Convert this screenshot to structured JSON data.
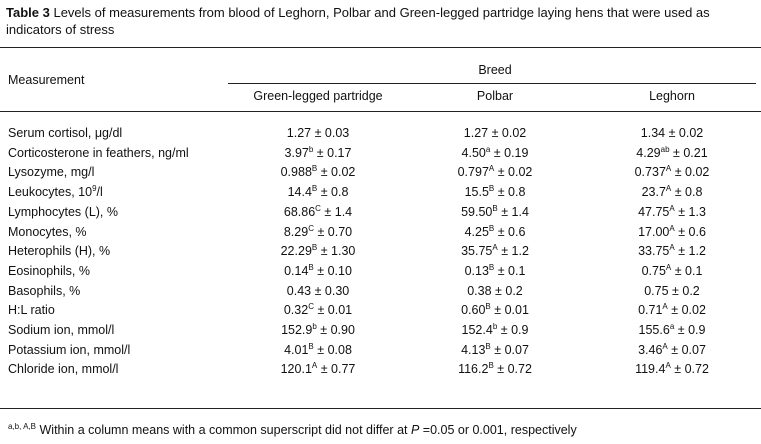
{
  "caption": {
    "label": "Table 3",
    "text": "Levels of measurements from blood of Leghorn, Polbar and Green-legged partridge laying hens that were used as indicators of stress"
  },
  "header": {
    "measurement": "Measurement",
    "group": "Breed",
    "columns": [
      "Green-legged partridge",
      "Polbar",
      "Leghorn"
    ]
  },
  "rows": [
    {
      "measurement": [
        {
          "t": "Serum cortisol, μg/dl"
        }
      ],
      "cells": [
        [
          {
            "t": "1.27 ± 0.03"
          }
        ],
        [
          {
            "t": "1.27 ± 0.02"
          }
        ],
        [
          {
            "t": "1.34 ± 0.02"
          }
        ]
      ]
    },
    {
      "measurement": [
        {
          "t": "Corticosterone in feathers, ng/ml"
        }
      ],
      "cells": [
        [
          {
            "t": "3.97"
          },
          {
            "sup": "b"
          },
          {
            "t": " ± 0.17"
          }
        ],
        [
          {
            "t": "4.50"
          },
          {
            "sup": "a"
          },
          {
            "t": " ± 0.19"
          }
        ],
        [
          {
            "t": "4.29"
          },
          {
            "sup": "ab"
          },
          {
            "t": " ± 0.21"
          }
        ]
      ]
    },
    {
      "measurement": [
        {
          "t": "Lysozyme, mg/l"
        }
      ],
      "cells": [
        [
          {
            "t": "0.988"
          },
          {
            "sup": "B"
          },
          {
            "t": " ± 0.02"
          }
        ],
        [
          {
            "t": "0.797"
          },
          {
            "sup": "A"
          },
          {
            "t": " ± 0.02"
          }
        ],
        [
          {
            "t": "0.737"
          },
          {
            "sup": "A"
          },
          {
            "t": " ± 0.02"
          }
        ]
      ]
    },
    {
      "measurement": [
        {
          "t": "Leukocytes, 10"
        },
        {
          "sup": "9"
        },
        {
          "t": "/l"
        }
      ],
      "cells": [
        [
          {
            "t": "14.4"
          },
          {
            "sup": "B"
          },
          {
            "t": " ± 0.8"
          }
        ],
        [
          {
            "t": "15.5"
          },
          {
            "sup": "B"
          },
          {
            "t": " ± 0.8"
          }
        ],
        [
          {
            "t": "23.7"
          },
          {
            "sup": "A"
          },
          {
            "t": " ± 0.8"
          }
        ]
      ]
    },
    {
      "measurement": [
        {
          "t": "Lymphocytes (L), %"
        }
      ],
      "cells": [
        [
          {
            "t": "68.86"
          },
          {
            "sup": "C"
          },
          {
            "t": " ± 1.4"
          }
        ],
        [
          {
            "t": "59.50"
          },
          {
            "sup": "B"
          },
          {
            "t": " ± 1.4"
          }
        ],
        [
          {
            "t": "47.75"
          },
          {
            "sup": "A"
          },
          {
            "t": " ± 1.3"
          }
        ]
      ]
    },
    {
      "measurement": [
        {
          "t": "Monocytes, %"
        }
      ],
      "cells": [
        [
          {
            "t": "8.29"
          },
          {
            "sup": "C"
          },
          {
            "t": " ± 0.70"
          }
        ],
        [
          {
            "t": "4.25"
          },
          {
            "sup": "B"
          },
          {
            "t": " ± 0.6"
          }
        ],
        [
          {
            "t": "17.00"
          },
          {
            "sup": "A"
          },
          {
            "t": " ± 0.6"
          }
        ]
      ]
    },
    {
      "measurement": [
        {
          "t": "Heterophils (H), %"
        }
      ],
      "cells": [
        [
          {
            "t": "22.29"
          },
          {
            "sup": "B"
          },
          {
            "t": " ± 1.30"
          }
        ],
        [
          {
            "t": "35.75"
          },
          {
            "sup": "A"
          },
          {
            "t": " ± 1.2"
          }
        ],
        [
          {
            "t": "33.75"
          },
          {
            "sup": "A"
          },
          {
            "t": " ± 1.2"
          }
        ]
      ]
    },
    {
      "measurement": [
        {
          "t": "Eosinophils, %"
        }
      ],
      "cells": [
        [
          {
            "t": "0.14"
          },
          {
            "sup": "B"
          },
          {
            "t": " ± 0.10"
          }
        ],
        [
          {
            "t": "0.13"
          },
          {
            "sup": "B"
          },
          {
            "t": " ± 0.1"
          }
        ],
        [
          {
            "t": "0.75"
          },
          {
            "sup": "A"
          },
          {
            "t": " ± 0.1"
          }
        ]
      ]
    },
    {
      "measurement": [
        {
          "t": "Basophils, %"
        }
      ],
      "cells": [
        [
          {
            "t": "0.43 ± 0.30"
          }
        ],
        [
          {
            "t": "0.38 ± 0.2"
          }
        ],
        [
          {
            "t": "0.75 ± 0.2"
          }
        ]
      ]
    },
    {
      "measurement": [
        {
          "t": "H:L ratio"
        }
      ],
      "cells": [
        [
          {
            "t": "0.32"
          },
          {
            "sup": "C"
          },
          {
            "t": " ± 0.01"
          }
        ],
        [
          {
            "t": "0.60"
          },
          {
            "sup": "B"
          },
          {
            "t": " ± 0.01"
          }
        ],
        [
          {
            "t": "0.71"
          },
          {
            "sup": "A"
          },
          {
            "t": " ± 0.02"
          }
        ]
      ]
    },
    {
      "measurement": [
        {
          "t": "Sodium ion, mmol/l"
        }
      ],
      "cells": [
        [
          {
            "t": "152.9"
          },
          {
            "sup": "b"
          },
          {
            "t": " ± 0.90"
          }
        ],
        [
          {
            "t": "152.4"
          },
          {
            "sup": "b"
          },
          {
            "t": " ± 0.9"
          }
        ],
        [
          {
            "t": "155.6"
          },
          {
            "sup": "a"
          },
          {
            "t": " ± 0.9"
          }
        ]
      ]
    },
    {
      "measurement": [
        {
          "t": "Potassium ion, mmol/l"
        }
      ],
      "cells": [
        [
          {
            "t": "4.01"
          },
          {
            "sup": "B"
          },
          {
            "t": " ± 0.08"
          }
        ],
        [
          {
            "t": "4.13"
          },
          {
            "sup": "B"
          },
          {
            "t": " ± 0.07"
          }
        ],
        [
          {
            "t": "3.46"
          },
          {
            "sup": "A"
          },
          {
            "t": " ± 0.07"
          }
        ]
      ]
    },
    {
      "measurement": [
        {
          "t": "Chloride ion, mmol/l"
        }
      ],
      "cells": [
        [
          {
            "t": "120.1"
          },
          {
            "sup": "A"
          },
          {
            "t": " ± 0.77"
          }
        ],
        [
          {
            "t": "116.2"
          },
          {
            "sup": "B"
          },
          {
            "t": " ± 0.72"
          }
        ],
        [
          {
            "t": "119.4"
          },
          {
            "sup": "A"
          },
          {
            "t": " ± 0.72"
          }
        ]
      ]
    }
  ],
  "footnote": [
    {
      "sup": "a,b, A,B"
    },
    {
      "t": " Within a column means with a common superscript did not differ at "
    },
    {
      "i": "P"
    },
    {
      "t": " =0.05 or 0.001, respectively"
    }
  ]
}
